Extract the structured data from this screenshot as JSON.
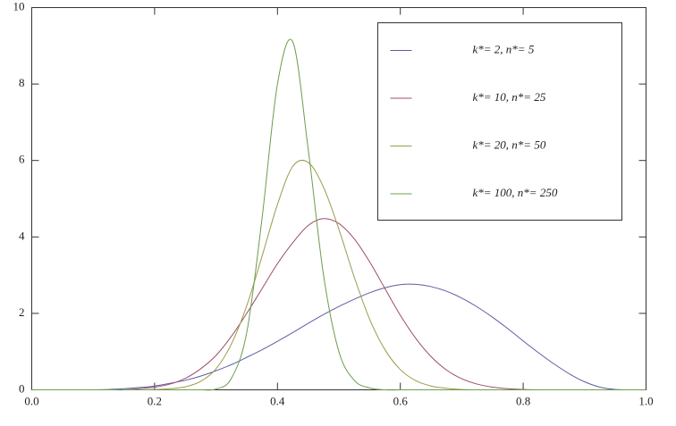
{
  "chart_data": {
    "type": "line",
    "x": [
      0,
      0.025,
      0.05,
      0.075,
      0.1,
      0.125,
      0.15,
      0.175,
      0.2,
      0.225,
      0.25,
      0.275,
      0.3,
      0.325,
      0.35,
      0.375,
      0.4,
      0.425,
      0.45,
      0.475,
      0.5,
      0.525,
      0.55,
      0.575,
      0.6,
      0.625,
      0.65,
      0.675,
      0.7,
      0.725,
      0.75,
      0.775,
      0.8,
      0.825,
      0.85,
      0.875,
      0.9,
      0.925,
      0.95,
      0.975,
      1
    ],
    "series": [
      {
        "name": "k*= 2, n*= 5",
        "color": "#5c5ca8",
        "values": [
          0,
          0,
          0,
          0,
          0,
          0.01,
          0.03,
          0.06,
          0.1,
          0.17,
          0.25,
          0.36,
          0.5,
          0.66,
          0.85,
          1.05,
          1.27,
          1.5,
          1.74,
          1.97,
          2.18,
          2.37,
          2.54,
          2.67,
          2.75,
          2.76,
          2.7,
          2.58,
          2.4,
          2.17,
          1.9,
          1.6,
          1.28,
          0.97,
          0.68,
          0.42,
          0.21,
          0.07,
          0.01,
          0,
          0
        ]
      },
      {
        "name": "k*= 10, n*= 25",
        "color": "#9c4c6c",
        "values": [
          0,
          0,
          0,
          0,
          0,
          0,
          0,
          0.03,
          0.07,
          0.15,
          0.3,
          0.55,
          0.9,
          1.4,
          2.0,
          2.65,
          3.3,
          3.85,
          4.3,
          4.48,
          4.35,
          3.95,
          3.35,
          2.65,
          1.95,
          1.35,
          0.87,
          0.52,
          0.29,
          0.15,
          0.07,
          0.03,
          0.01,
          0,
          0,
          0,
          0,
          0,
          0,
          0,
          0
        ]
      },
      {
        "name": "k*= 20, n*= 50",
        "color": "#9c9a4c",
        "values": [
          0,
          0,
          0,
          0,
          0,
          0,
          0,
          0,
          0.01,
          0.03,
          0.08,
          0.22,
          0.55,
          1.2,
          2.2,
          3.5,
          4.85,
          5.85,
          5.95,
          5.3,
          4.2,
          2.95,
          1.85,
          1.05,
          0.53,
          0.24,
          0.1,
          0.04,
          0.01,
          0,
          0,
          0,
          0,
          0,
          0,
          0,
          0,
          0,
          0,
          0,
          0
        ]
      },
      {
        "name": "k*= 100, n*= 250",
        "color": "#6c9c4c",
        "values": [
          0,
          0,
          0,
          0,
          0,
          0,
          0,
          0,
          0,
          0,
          0,
          0,
          0.02,
          0.3,
          1.5,
          4.5,
          8.0,
          9.1,
          6.3,
          3.0,
          1.0,
          0.25,
          0.05,
          0,
          0,
          0,
          0,
          0,
          0,
          0,
          0,
          0,
          0,
          0,
          0,
          0,
          0,
          0,
          0,
          0,
          0
        ]
      }
    ],
    "xlim": [
      0,
      1
    ],
    "xticks": [
      {
        "value": 0,
        "label": "0.0"
      },
      0.2,
      0.4,
      0.6,
      0.8,
      {
        "value": 1,
        "label": "1.0"
      }
    ],
    "ylim": [
      0,
      10
    ],
    "yticks": [
      0,
      2,
      4,
      6,
      8,
      10
    ],
    "grid": false,
    "legend": "upper right"
  }
}
